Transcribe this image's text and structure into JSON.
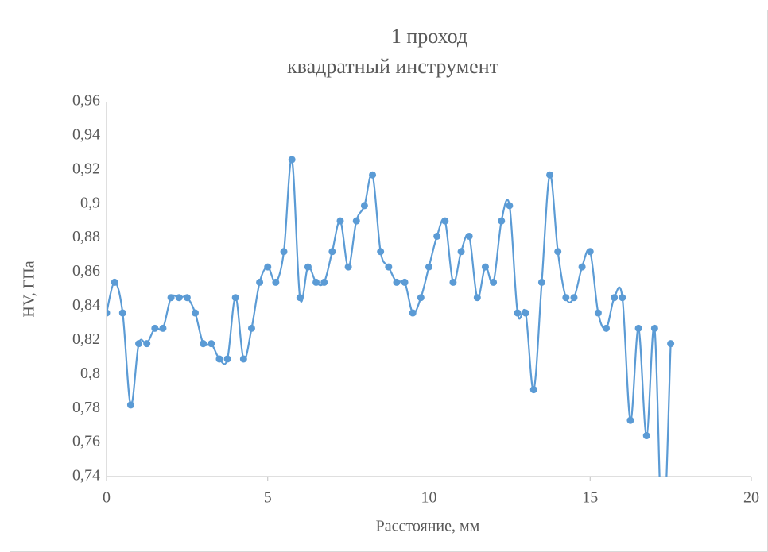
{
  "chart_data": {
    "type": "line",
    "title": "1 проход",
    "subtitle": "квадратный инструмент",
    "x_label": "Расстояние, мм",
    "y_label": "HV, ГПа",
    "x": [
      0,
      0.25,
      0.5,
      0.75,
      1,
      1.25,
      1.5,
      1.75,
      2,
      2.25,
      2.5,
      2.75,
      3,
      3.25,
      3.5,
      3.75,
      4,
      4.25,
      4.5,
      4.75,
      5,
      5.25,
      5.5,
      5.75,
      6,
      6.25,
      6.5,
      6.75,
      7,
      7.25,
      7.5,
      7.75,
      8,
      8.25,
      8.5,
      8.75,
      9,
      9.25,
      9.5,
      9.75,
      10,
      10.25,
      10.5,
      10.75,
      11,
      11.25,
      11.5,
      11.75,
      12,
      12.25,
      12.5,
      12.75,
      13,
      13.25,
      13.5,
      13.75,
      14,
      14.25,
      14.5,
      14.75,
      15,
      15.25,
      15.5,
      15.75,
      16,
      16.25,
      16.5,
      16.75,
      17,
      17.25,
      17.5
    ],
    "series": [
      {
        "name": "HV",
        "color": "#5b9bd5",
        "values": [
          0.836,
          0.854,
          0.836,
          0.782,
          0.818,
          0.818,
          0.827,
          0.827,
          0.845,
          0.845,
          0.845,
          0.836,
          0.818,
          0.818,
          0.809,
          0.809,
          0.845,
          0.809,
          0.827,
          0.854,
          0.863,
          0.854,
          0.872,
          0.926,
          0.845,
          0.863,
          0.854,
          0.854,
          0.872,
          0.89,
          0.863,
          0.89,
          0.899,
          0.917,
          0.872,
          0.863,
          0.854,
          0.854,
          0.836,
          0.845,
          0.863,
          0.881,
          0.89,
          0.854,
          0.872,
          0.881,
          0.845,
          0.863,
          0.854,
          0.89,
          0.899,
          0.836,
          0.836,
          0.791,
          0.854,
          0.917,
          0.872,
          0.845,
          0.845,
          0.863,
          0.872,
          0.836,
          0.827,
          0.845,
          0.845,
          0.773,
          0.827,
          0.764,
          0.827,
          0.7,
          0.818
        ]
      }
    ],
    "xlim": [
      0,
      20
    ],
    "xticks": [
      0,
      5,
      10,
      15,
      20
    ],
    "ylim": [
      0.74,
      0.96
    ],
    "yticks": [
      {
        "value": 0.74,
        "label": "0,74"
      },
      {
        "value": 0.76,
        "label": "0,76"
      },
      {
        "value": 0.78,
        "label": "0,78"
      },
      {
        "value": 0.8,
        "label": "0,8"
      },
      {
        "value": 0.82,
        "label": "0,82"
      },
      {
        "value": 0.84,
        "label": "0,84"
      },
      {
        "value": 0.86,
        "label": "0,86"
      },
      {
        "value": 0.88,
        "label": "0,88"
      },
      {
        "value": 0.9,
        "label": "0,9"
      },
      {
        "value": 0.92,
        "label": "0,92"
      },
      {
        "value": 0.94,
        "label": "0,94"
      },
      {
        "value": 0.96,
        "label": "0,96"
      }
    ],
    "grid": false,
    "smooth": true,
    "markers": true
  }
}
